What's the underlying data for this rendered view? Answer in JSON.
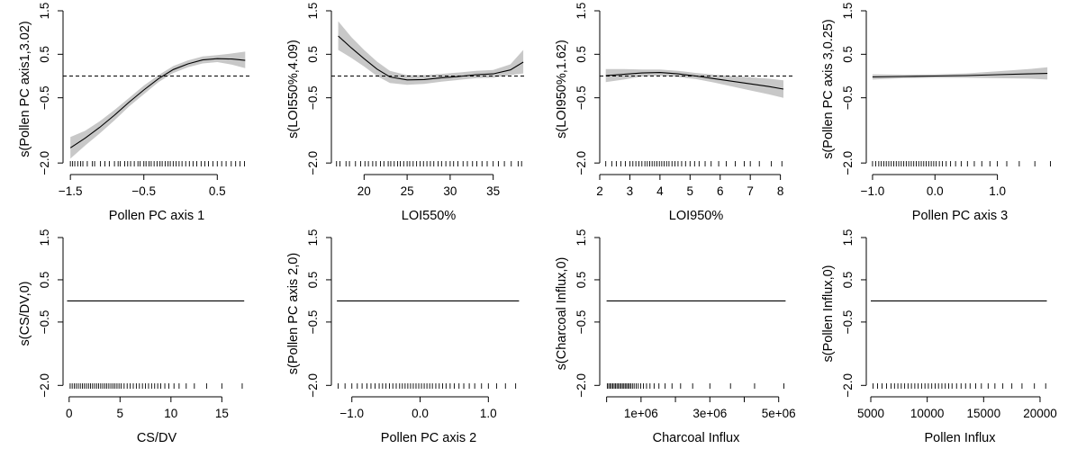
{
  "chart_data": [
    {
      "type": "line",
      "xlabel": "Pollen PC axis 1",
      "ylabel": "s(Pollen PC axis1,3.02)",
      "xlim": [
        -1.6,
        0.95
      ],
      "ylim": [
        -2.1,
        1.5
      ],
      "xticks": [
        -1.5,
        -0.5,
        0.5
      ],
      "xtick_labels": [
        "−1.5",
        "−0.5",
        "0.5"
      ],
      "yticks": [
        -2.0,
        -0.5,
        0.5,
        1.5
      ],
      "ytick_labels": [
        "−2.0",
        "−0.5",
        "0.5",
        "1.5"
      ],
      "grid": false,
      "zero_line": true,
      "x": [
        -1.5,
        -1.3,
        -1.1,
        -0.9,
        -0.7,
        -0.5,
        -0.3,
        -0.1,
        0.1,
        0.3,
        0.5,
        0.7,
        0.88
      ],
      "fit": [
        -1.65,
        -1.43,
        -1.18,
        -0.9,
        -0.6,
        -0.32,
        -0.06,
        0.15,
        0.28,
        0.37,
        0.4,
        0.39,
        0.36
      ],
      "lower": [
        -1.9,
        -1.6,
        -1.32,
        -1.02,
        -0.7,
        -0.42,
        -0.14,
        0.07,
        0.2,
        0.29,
        0.32,
        0.26,
        0.18
      ],
      "upper": [
        -1.4,
        -1.26,
        -1.04,
        -0.78,
        -0.5,
        -0.22,
        0.02,
        0.23,
        0.36,
        0.45,
        0.48,
        0.52,
        0.56
      ],
      "rug": [
        -1.5,
        -1.47,
        -1.44,
        -1.4,
        -1.36,
        -1.33,
        -1.27,
        -1.2,
        -1.17,
        -1.09,
        -1.03,
        -0.97,
        -0.9,
        -0.85,
        -0.82,
        -0.76,
        -0.72,
        -0.68,
        -0.63,
        -0.58,
        -0.55,
        -0.5,
        -0.47,
        -0.43,
        -0.4,
        -0.36,
        -0.32,
        -0.28,
        -0.25,
        -0.21,
        -0.17,
        -0.14,
        -0.1,
        -0.06,
        -0.02,
        0.02,
        0.07,
        0.12,
        0.17,
        0.22,
        0.28,
        0.33,
        0.38,
        0.44,
        0.5,
        0.56,
        0.62,
        0.69,
        0.75,
        0.81,
        0.87
      ]
    },
    {
      "type": "line",
      "xlabel": "LOI550%",
      "ylabel": "s(LOI550%,4.09)",
      "xlim": [
        16.2,
        38.8
      ],
      "ylim": [
        -2.1,
        1.5
      ],
      "xticks": [
        20,
        25,
        30,
        35
      ],
      "xtick_labels": [
        "20",
        "25",
        "30",
        "35"
      ],
      "yticks": [
        -2.0,
        -0.5,
        0.5,
        1.5
      ],
      "ytick_labels": [
        "−2.0",
        "−0.5",
        "0.5",
        "1.5"
      ],
      "grid": false,
      "zero_line": true,
      "x": [
        17,
        18.5,
        20,
        21.5,
        23,
        25,
        27,
        29,
        31,
        33,
        35,
        37,
        38.5
      ],
      "fit": [
        0.92,
        0.65,
        0.4,
        0.16,
        -0.02,
        -0.09,
        -0.08,
        -0.04,
        -0.01,
        0.03,
        0.05,
        0.14,
        0.32
      ],
      "lower": [
        0.6,
        0.42,
        0.22,
        0.0,
        -0.16,
        -0.2,
        -0.18,
        -0.13,
        -0.09,
        -0.05,
        -0.04,
        0.02,
        0.06
      ],
      "upper": [
        1.26,
        0.9,
        0.6,
        0.33,
        0.12,
        0.02,
        0.02,
        0.05,
        0.08,
        0.12,
        0.14,
        0.27,
        0.6
      ],
      "rug": [
        16.8,
        17.2,
        17.9,
        18.3,
        19.0,
        19.6,
        20.1,
        20.5,
        21.0,
        21.4,
        21.9,
        22.3,
        22.8,
        23.1,
        23.5,
        23.9,
        24.2,
        24.6,
        25.0,
        25.3,
        25.7,
        26.1,
        26.5,
        26.9,
        27.3,
        27.7,
        28.1,
        28.6,
        29.0,
        29.5,
        30.0,
        30.4,
        30.9,
        31.5,
        32.0,
        32.6,
        33.1,
        33.7,
        34.3,
        35.0,
        35.6,
        36.3,
        37.1,
        37.9,
        38.3
      ]
    },
    {
      "type": "line",
      "xlabel": "LOI950%",
      "ylabel": "s(LOI950%,1.62)",
      "xlim": [
        2.0,
        8.4
      ],
      "ylim": [
        -2.1,
        1.5
      ],
      "xticks": [
        2,
        3,
        4,
        5,
        6,
        7,
        8
      ],
      "xtick_labels": [
        "2",
        "3",
        "4",
        "5",
        "6",
        "7",
        "8"
      ],
      "yticks": [
        -2.0,
        -0.5,
        0.5,
        1.5
      ],
      "ytick_labels": [
        "−2.0",
        "−0.5",
        "0.5",
        "1.5"
      ],
      "grid": false,
      "zero_line": true,
      "x": [
        2.2,
        2.8,
        3.4,
        4.0,
        4.6,
        5.2,
        5.8,
        6.4,
        7.0,
        7.6,
        8.1
      ],
      "fit": [
        0.01,
        0.04,
        0.07,
        0.08,
        0.05,
        0.0,
        -0.06,
        -0.12,
        -0.18,
        -0.24,
        -0.3
      ],
      "lower": [
        -0.14,
        -0.08,
        -0.01,
        0.01,
        -0.02,
        -0.07,
        -0.15,
        -0.24,
        -0.33,
        -0.42,
        -0.5
      ],
      "upper": [
        0.16,
        0.16,
        0.15,
        0.15,
        0.12,
        0.07,
        0.03,
        0.0,
        -0.03,
        -0.06,
        -0.1
      ],
      "rug": [
        2.2,
        2.4,
        2.55,
        2.7,
        2.85,
        3.0,
        3.1,
        3.2,
        3.3,
        3.4,
        3.5,
        3.58,
        3.66,
        3.74,
        3.82,
        3.9,
        3.98,
        4.06,
        4.14,
        4.22,
        4.3,
        4.4,
        4.5,
        4.6,
        4.72,
        4.85,
        5.0,
        5.15,
        5.3,
        5.5,
        5.7,
        5.95,
        6.2,
        6.5,
        6.8,
        7.0,
        7.3,
        7.7,
        8.05
      ]
    },
    {
      "type": "line",
      "xlabel": "Pollen PC axis 3",
      "ylabel": "s(Pollen PC axis 3,0.25)",
      "xlim": [
        -1.1,
        1.9
      ],
      "ylim": [
        -2.1,
        1.5
      ],
      "xticks": [
        -1.0,
        0.0,
        1.0
      ],
      "xtick_labels": [
        "−1.0",
        "0.0",
        "1.0"
      ],
      "yticks": [
        -2.0,
        -0.5,
        0.5,
        1.5
      ],
      "ytick_labels": [
        "−2.0",
        "−0.5",
        "0.5",
        "1.5"
      ],
      "grid": false,
      "zero_line": false,
      "x": [
        -1.0,
        -0.5,
        0.0,
        0.5,
        1.0,
        1.5,
        1.8
      ],
      "fit": [
        -0.02,
        -0.01,
        0.0,
        0.01,
        0.03,
        0.05,
        0.06
      ],
      "lower": [
        -0.08,
        -0.05,
        -0.04,
        -0.04,
        -0.05,
        -0.06,
        -0.08
      ],
      "upper": [
        0.04,
        0.03,
        0.04,
        0.06,
        0.11,
        0.16,
        0.2
      ],
      "rug": [
        -1.0,
        -0.95,
        -0.9,
        -0.86,
        -0.82,
        -0.78,
        -0.74,
        -0.7,
        -0.66,
        -0.62,
        -0.58,
        -0.54,
        -0.5,
        -0.46,
        -0.42,
        -0.38,
        -0.34,
        -0.3,
        -0.26,
        -0.22,
        -0.18,
        -0.14,
        -0.1,
        -0.06,
        -0.02,
        0.02,
        0.07,
        0.12,
        0.18,
        0.25,
        0.33,
        0.42,
        0.52,
        0.63,
        0.75,
        0.88,
        1.0,
        1.15,
        1.35,
        1.6,
        1.85
      ]
    },
    {
      "type": "line",
      "xlabel": "CS/DV",
      "ylabel": "s(CS/DV,0)",
      "xlim": [
        -0.6,
        17.8
      ],
      "ylim": [
        -2.1,
        1.5
      ],
      "xticks": [
        0,
        5,
        10,
        15
      ],
      "xtick_labels": [
        "0",
        "5",
        "10",
        "15"
      ],
      "yticks": [
        -2.0,
        -0.5,
        0.5,
        1.5
      ],
      "ytick_labels": [
        "−2.0",
        "−0.5",
        "0.5",
        "1.5"
      ],
      "grid": false,
      "zero_line": false,
      "x": [
        -0.2,
        17.2
      ],
      "fit": [
        0.0,
        0.0
      ],
      "rug": [
        0.1,
        0.3,
        0.5,
        0.7,
        0.9,
        1.1,
        1.3,
        1.5,
        1.7,
        1.9,
        2.1,
        2.3,
        2.5,
        2.7,
        2.9,
        3.1,
        3.3,
        3.5,
        3.7,
        3.9,
        4.1,
        4.3,
        4.5,
        4.7,
        4.9,
        5.1,
        5.4,
        5.7,
        6.0,
        6.3,
        6.6,
        6.9,
        7.2,
        7.5,
        7.8,
        8.1,
        8.4,
        8.7,
        9.0,
        9.4,
        9.8,
        10.3,
        10.8,
        11.5,
        12.3,
        13.5,
        15.0,
        17.0
      ]
    },
    {
      "type": "line",
      "xlabel": "Pollen PC axis 2",
      "ylabel": "s(Pollen PC axis 2,0)",
      "xlim": [
        -1.3,
        1.55
      ],
      "ylim": [
        -2.1,
        1.5
      ],
      "xticks": [
        -1.0,
        0.0,
        1.0
      ],
      "xtick_labels": [
        "−1.0",
        "0.0",
        "1.0"
      ],
      "yticks": [
        -2.0,
        -0.5,
        0.5,
        1.5
      ],
      "ytick_labels": [
        "−2.0",
        "−0.5",
        "0.5",
        "1.5"
      ],
      "grid": false,
      "zero_line": false,
      "x": [
        -1.22,
        1.45
      ],
      "fit": [
        0.0,
        0.0
      ],
      "rug": [
        -1.2,
        -1.1,
        -1.0,
        -0.92,
        -0.85,
        -0.78,
        -0.72,
        -0.66,
        -0.6,
        -0.55,
        -0.5,
        -0.45,
        -0.4,
        -0.35,
        -0.3,
        -0.26,
        -0.22,
        -0.18,
        -0.14,
        -0.1,
        -0.06,
        -0.02,
        0.02,
        0.06,
        0.1,
        0.14,
        0.18,
        0.23,
        0.28,
        0.33,
        0.38,
        0.44,
        0.5,
        0.57,
        0.64,
        0.72,
        0.8,
        0.9,
        1.0,
        1.12,
        1.25,
        1.4
      ]
    },
    {
      "type": "line",
      "xlabel": "Charcoal Influx",
      "ylabel": "s(Charcoal Influx,0)",
      "xlim": [
        -200000,
        5400000
      ],
      "ylim": [
        -2.1,
        1.5
      ],
      "xticks": [
        1000000,
        3000000,
        5000000
      ],
      "xtick_labels": [
        "1e+06",
        "3e+06",
        "5e+06"
      ],
      "minor_xticks": [
        0,
        2000000,
        4000000
      ],
      "yticks": [
        -2.0,
        -0.5,
        0.5,
        1.5
      ],
      "ytick_labels": [
        "−2.0",
        "−0.5",
        "0.5",
        "1.5"
      ],
      "grid": false,
      "zero_line": false,
      "x": [
        0,
        5200000
      ],
      "fit": [
        0.0,
        0.0
      ],
      "rug": [
        20000,
        60000,
        100000,
        140000,
        180000,
        220000,
        260000,
        300000,
        340000,
        380000,
        420000,
        460000,
        500000,
        540000,
        580000,
        620000,
        660000,
        700000,
        750000,
        800000,
        860000,
        920000,
        990000,
        1070000,
        1160000,
        1260000,
        1380000,
        1520000,
        1700000,
        1900000,
        2150000,
        2500000,
        3000000,
        3600000,
        4300000,
        5150000
      ]
    },
    {
      "type": "line",
      "xlabel": "Pollen Influx",
      "ylabel": "s(Pollen Influx,0)",
      "xlim": [
        4600,
        21200
      ],
      "ylim": [
        -2.1,
        1.5
      ],
      "xticks": [
        5000,
        10000,
        15000,
        20000
      ],
      "xtick_labels": [
        "5000",
        "10000",
        "15000",
        "20000"
      ],
      "yticks": [
        -2.0,
        -0.5,
        0.5,
        1.5
      ],
      "ytick_labels": [
        "−2.0",
        "−0.5",
        "0.5",
        "1.5"
      ],
      "grid": false,
      "zero_line": false,
      "x": [
        5000,
        20600
      ],
      "fit": [
        0.0,
        0.0
      ],
      "rug": [
        5200,
        5600,
        6000,
        6400,
        6800,
        7100,
        7400,
        7700,
        8000,
        8300,
        8600,
        8900,
        9200,
        9500,
        9800,
        10100,
        10400,
        10700,
        11000,
        11300,
        11600,
        11900,
        12200,
        12600,
        13000,
        13400,
        13800,
        14300,
        14800,
        15400,
        16000,
        16700,
        17500,
        18400,
        19500,
        20500
      ]
    }
  ]
}
